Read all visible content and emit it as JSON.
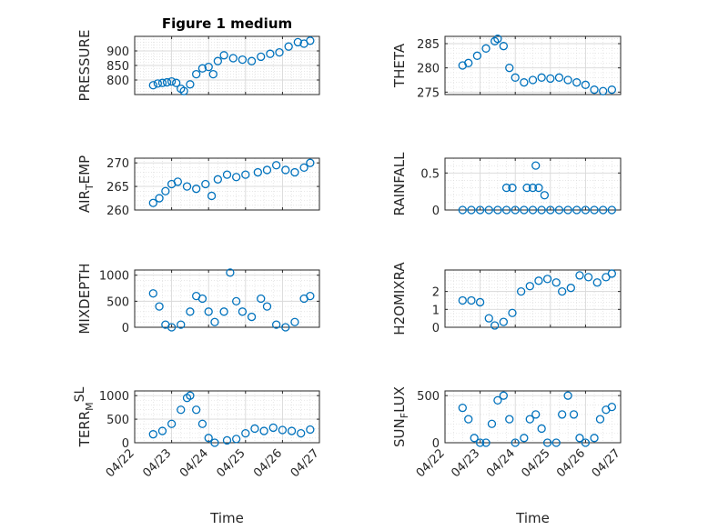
{
  "figure_title": "Figure 1 medium",
  "colors": {
    "marker": "#0072BD",
    "axes": "#262626",
    "grid": "#d9d9d9"
  },
  "chart_data": [
    {
      "type": "scatter",
      "title": "Figure 1 medium",
      "ylabel": "PRESSURE",
      "xlim": [
        "2024-04-22",
        "2024-04-27"
      ],
      "ylim": [
        750,
        950
      ],
      "yticks": [
        800,
        850,
        900
      ],
      "xticklabels": [],
      "grid": true,
      "points": [
        [
          "2024-04-22 12:00",
          782
        ],
        [
          "2024-04-22 15:00",
          788
        ],
        [
          "2024-04-22 18:00",
          790
        ],
        [
          "2024-04-22 21:00",
          792
        ],
        [
          "2024-04-23 00:00",
          795
        ],
        [
          "2024-04-23 03:00",
          790
        ],
        [
          "2024-04-23 06:00",
          770
        ],
        [
          "2024-04-23 08:00",
          762
        ],
        [
          "2024-04-23 12:00",
          785
        ],
        [
          "2024-04-23 16:00",
          820
        ],
        [
          "2024-04-23 20:00",
          840
        ],
        [
          "2024-04-24 00:00",
          845
        ],
        [
          "2024-04-24 03:00",
          820
        ],
        [
          "2024-04-24 06:00",
          865
        ],
        [
          "2024-04-24 10:00",
          885
        ],
        [
          "2024-04-24 16:00",
          875
        ],
        [
          "2024-04-24 22:00",
          870
        ],
        [
          "2024-04-25 04:00",
          865
        ],
        [
          "2024-04-25 10:00",
          880
        ],
        [
          "2024-04-25 16:00",
          890
        ],
        [
          "2024-04-25 22:00",
          895
        ],
        [
          "2024-04-26 04:00",
          915
        ],
        [
          "2024-04-26 10:00",
          930
        ],
        [
          "2024-04-26 14:00",
          925
        ],
        [
          "2024-04-26 18:00",
          935
        ]
      ]
    },
    {
      "type": "scatter",
      "ylabel": "THETA",
      "xlim": [
        "2024-04-22",
        "2024-04-27"
      ],
      "ylim": [
        274.5,
        286.5
      ],
      "yticks": [
        275,
        280,
        285
      ],
      "xticklabels": [],
      "grid": true,
      "points": [
        [
          "2024-04-22 12:00",
          280.5
        ],
        [
          "2024-04-22 16:00",
          281
        ],
        [
          "2024-04-22 22:00",
          282.5
        ],
        [
          "2024-04-23 04:00",
          284
        ],
        [
          "2024-04-23 10:00",
          285.5
        ],
        [
          "2024-04-23 12:00",
          286
        ],
        [
          "2024-04-23 16:00",
          284.5
        ],
        [
          "2024-04-23 20:00",
          280
        ],
        [
          "2024-04-24 00:00",
          278
        ],
        [
          "2024-04-24 06:00",
          277
        ],
        [
          "2024-04-24 12:00",
          277.5
        ],
        [
          "2024-04-24 18:00",
          278
        ],
        [
          "2024-04-25 00:00",
          277.8
        ],
        [
          "2024-04-25 06:00",
          278
        ],
        [
          "2024-04-25 12:00",
          277.5
        ],
        [
          "2024-04-25 18:00",
          277
        ],
        [
          "2024-04-26 00:00",
          276.5
        ],
        [
          "2024-04-26 06:00",
          275.5
        ],
        [
          "2024-04-26 12:00",
          275.2
        ],
        [
          "2024-04-26 18:00",
          275.5
        ]
      ]
    },
    {
      "type": "scatter",
      "ylabel": "AIR",
      "ylabel_sub": "T",
      "ylabel_tail": "EMP",
      "xlim": [
        "2024-04-22",
        "2024-04-27"
      ],
      "ylim": [
        260,
        271
      ],
      "yticks": [
        260,
        265,
        270
      ],
      "xticklabels": [],
      "grid": true,
      "points": [
        [
          "2024-04-22 12:00",
          261.5
        ],
        [
          "2024-04-22 16:00",
          262.5
        ],
        [
          "2024-04-22 20:00",
          264
        ],
        [
          "2024-04-23 00:00",
          265.5
        ],
        [
          "2024-04-23 04:00",
          266
        ],
        [
          "2024-04-23 10:00",
          265
        ],
        [
          "2024-04-23 16:00",
          264.5
        ],
        [
          "2024-04-23 22:00",
          265.5
        ],
        [
          "2024-04-24 02:00",
          263
        ],
        [
          "2024-04-24 06:00",
          266.5
        ],
        [
          "2024-04-24 12:00",
          267.5
        ],
        [
          "2024-04-24 18:00",
          267
        ],
        [
          "2024-04-25 00:00",
          267.5
        ],
        [
          "2024-04-25 08:00",
          268
        ],
        [
          "2024-04-25 14:00",
          268.5
        ],
        [
          "2024-04-25 20:00",
          269.5
        ],
        [
          "2024-04-26 02:00",
          268.5
        ],
        [
          "2024-04-26 08:00",
          268
        ],
        [
          "2024-04-26 14:00",
          269
        ],
        [
          "2024-04-26 18:00",
          270
        ]
      ]
    },
    {
      "type": "scatter",
      "ylabel": "RAINFALL",
      "xlim": [
        "2024-04-22",
        "2024-04-27"
      ],
      "ylim": [
        0,
        0.7
      ],
      "yticks": [
        0,
        0.5
      ],
      "xticklabels": [],
      "grid": true,
      "points": [
        [
          "2024-04-22 12:00",
          0
        ],
        [
          "2024-04-22 18:00",
          0
        ],
        [
          "2024-04-23 00:00",
          0
        ],
        [
          "2024-04-23 06:00",
          0
        ],
        [
          "2024-04-23 12:00",
          0
        ],
        [
          "2024-04-23 18:00",
          0
        ],
        [
          "2024-04-24 00:00",
          0
        ],
        [
          "2024-04-24 06:00",
          0
        ],
        [
          "2024-04-24 12:00",
          0
        ],
        [
          "2024-04-24 18:00",
          0
        ],
        [
          "2024-04-25 00:00",
          0
        ],
        [
          "2024-04-25 06:00",
          0
        ],
        [
          "2024-04-25 12:00",
          0
        ],
        [
          "2024-04-25 18:00",
          0
        ],
        [
          "2024-04-26 00:00",
          0
        ],
        [
          "2024-04-26 06:00",
          0
        ],
        [
          "2024-04-26 12:00",
          0
        ],
        [
          "2024-04-26 18:00",
          0
        ],
        [
          "2024-04-23 18:00",
          0.3
        ],
        [
          "2024-04-23 22:00",
          0.3
        ],
        [
          "2024-04-24 08:00",
          0.3
        ],
        [
          "2024-04-24 12:00",
          0.3
        ],
        [
          "2024-04-24 14:00",
          0.6
        ],
        [
          "2024-04-24 16:00",
          0.3
        ],
        [
          "2024-04-24 20:00",
          0.2
        ]
      ]
    },
    {
      "type": "scatter",
      "ylabel": "MIXDEPTH",
      "xlim": [
        "2024-04-22",
        "2024-04-27"
      ],
      "ylim": [
        0,
        1100
      ],
      "yticks": [
        0,
        500,
        1000
      ],
      "xticklabels": [],
      "grid": true,
      "points": [
        [
          "2024-04-22 12:00",
          650
        ],
        [
          "2024-04-22 16:00",
          400
        ],
        [
          "2024-04-22 20:00",
          50
        ],
        [
          "2024-04-23 00:00",
          0
        ],
        [
          "2024-04-23 06:00",
          50
        ],
        [
          "2024-04-23 12:00",
          300
        ],
        [
          "2024-04-23 16:00",
          600
        ],
        [
          "2024-04-23 20:00",
          550
        ],
        [
          "2024-04-24 00:00",
          300
        ],
        [
          "2024-04-24 04:00",
          100
        ],
        [
          "2024-04-24 10:00",
          300
        ],
        [
          "2024-04-24 14:00",
          1050
        ],
        [
          "2024-04-24 18:00",
          500
        ],
        [
          "2024-04-24 22:00",
          300
        ],
        [
          "2024-04-25 04:00",
          200
        ],
        [
          "2024-04-25 10:00",
          550
        ],
        [
          "2024-04-25 14:00",
          400
        ],
        [
          "2024-04-25 20:00",
          50
        ],
        [
          "2024-04-26 02:00",
          0
        ],
        [
          "2024-04-26 08:00",
          100
        ],
        [
          "2024-04-26 14:00",
          550
        ],
        [
          "2024-04-26 18:00",
          600
        ]
      ]
    },
    {
      "type": "scatter",
      "ylabel": "H2OMIXRA",
      "xlim": [
        "2024-04-22",
        "2024-04-27"
      ],
      "ylim": [
        0,
        3.2
      ],
      "yticks": [
        0,
        1,
        2
      ],
      "xticklabels": [],
      "grid": true,
      "points": [
        [
          "2024-04-22 12:00",
          1.5
        ],
        [
          "2024-04-22 18:00",
          1.5
        ],
        [
          "2024-04-23 00:00",
          1.4
        ],
        [
          "2024-04-23 06:00",
          0.5
        ],
        [
          "2024-04-23 10:00",
          0.1
        ],
        [
          "2024-04-23 16:00",
          0.3
        ],
        [
          "2024-04-23 22:00",
          0.8
        ],
        [
          "2024-04-24 04:00",
          2.0
        ],
        [
          "2024-04-24 10:00",
          2.3
        ],
        [
          "2024-04-24 16:00",
          2.6
        ],
        [
          "2024-04-24 22:00",
          2.7
        ],
        [
          "2024-04-25 04:00",
          2.5
        ],
        [
          "2024-04-25 08:00",
          2.0
        ],
        [
          "2024-04-25 14:00",
          2.2
        ],
        [
          "2024-04-25 20:00",
          2.9
        ],
        [
          "2024-04-26 02:00",
          2.8
        ],
        [
          "2024-04-26 08:00",
          2.5
        ],
        [
          "2024-04-26 14:00",
          2.8
        ],
        [
          "2024-04-26 18:00",
          3.0
        ]
      ]
    },
    {
      "type": "scatter",
      "ylabel": "TERR",
      "ylabel_sub": "M",
      "ylabel_sup": "SL",
      "xlim": [
        "2024-04-22",
        "2024-04-27"
      ],
      "ylim": [
        0,
        1100
      ],
      "yticks": [
        0,
        500,
        1000
      ],
      "xticklabels": [
        "04/22",
        "04/23",
        "04/24",
        "04/25",
        "04/26",
        "04/27"
      ],
      "xlabel": "Time",
      "grid": true,
      "points": [
        [
          "2024-04-22 12:00",
          180
        ],
        [
          "2024-04-22 18:00",
          250
        ],
        [
          "2024-04-23 00:00",
          400
        ],
        [
          "2024-04-23 06:00",
          700
        ],
        [
          "2024-04-23 10:00",
          950
        ],
        [
          "2024-04-23 12:00",
          1000
        ],
        [
          "2024-04-23 16:00",
          700
        ],
        [
          "2024-04-23 20:00",
          400
        ],
        [
          "2024-04-24 00:00",
          100
        ],
        [
          "2024-04-24 04:00",
          0
        ],
        [
          "2024-04-24 12:00",
          50
        ],
        [
          "2024-04-24 18:00",
          80
        ],
        [
          "2024-04-25 00:00",
          200
        ],
        [
          "2024-04-25 06:00",
          300
        ],
        [
          "2024-04-25 12:00",
          250
        ],
        [
          "2024-04-25 18:00",
          320
        ],
        [
          "2024-04-26 00:00",
          270
        ],
        [
          "2024-04-26 06:00",
          250
        ],
        [
          "2024-04-26 12:00",
          200
        ],
        [
          "2024-04-26 18:00",
          280
        ]
      ]
    },
    {
      "type": "scatter",
      "ylabel": "SUN",
      "ylabel_sub": "F",
      "ylabel_tail": "LUX",
      "xlim": [
        "2024-04-22",
        "2024-04-27"
      ],
      "ylim": [
        0,
        550
      ],
      "yticks": [
        0,
        500
      ],
      "xticklabels": [
        "04/22",
        "04/23",
        "04/24",
        "04/25",
        "04/26",
        "04/27"
      ],
      "xlabel": "Time",
      "grid": true,
      "points": [
        [
          "2024-04-22 12:00",
          370
        ],
        [
          "2024-04-22 16:00",
          250
        ],
        [
          "2024-04-22 20:00",
          50
        ],
        [
          "2024-04-23 00:00",
          0
        ],
        [
          "2024-04-23 04:00",
          0
        ],
        [
          "2024-04-23 08:00",
          200
        ],
        [
          "2024-04-23 12:00",
          450
        ],
        [
          "2024-04-23 16:00",
          500
        ],
        [
          "2024-04-23 20:00",
          250
        ],
        [
          "2024-04-24 00:00",
          0
        ],
        [
          "2024-04-24 06:00",
          50
        ],
        [
          "2024-04-24 10:00",
          250
        ],
        [
          "2024-04-24 14:00",
          300
        ],
        [
          "2024-04-24 18:00",
          150
        ],
        [
          "2024-04-24 22:00",
          0
        ],
        [
          "2024-04-25 04:00",
          0
        ],
        [
          "2024-04-25 08:00",
          300
        ],
        [
          "2024-04-25 12:00",
          500
        ],
        [
          "2024-04-25 16:00",
          300
        ],
        [
          "2024-04-25 20:00",
          50
        ],
        [
          "2024-04-26 00:00",
          0
        ],
        [
          "2024-04-26 06:00",
          50
        ],
        [
          "2024-04-26 10:00",
          250
        ],
        [
          "2024-04-26 14:00",
          350
        ],
        [
          "2024-04-26 18:00",
          380
        ]
      ]
    }
  ]
}
